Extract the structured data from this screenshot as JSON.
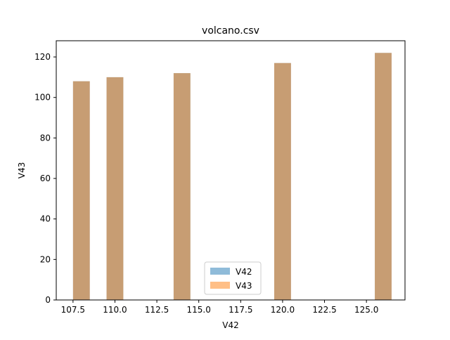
{
  "chart_data": {
    "type": "bar",
    "title": "volcano.csv",
    "xlabel": "V42",
    "ylabel": "V43",
    "xlim": [
      106.5,
      127.3
    ],
    "ylim": [
      0,
      128
    ],
    "x_ticks": [
      107.5,
      110.0,
      112.5,
      115.0,
      117.5,
      120.0,
      122.5,
      125.0
    ],
    "x_tick_labels": [
      "107.5",
      "110.0",
      "112.5",
      "115.0",
      "117.5",
      "120.0",
      "122.5",
      "125.0"
    ],
    "y_ticks": [
      0,
      20,
      40,
      60,
      80,
      100,
      120
    ],
    "y_tick_labels": [
      "0",
      "20",
      "40",
      "60",
      "80",
      "100",
      "120"
    ],
    "bar_width": 1.0,
    "grid": false,
    "legend": "lower center",
    "series": [
      {
        "name": "V42",
        "color": "#1f77b4",
        "alpha": 0.5,
        "x": [
          108,
          110,
          114,
          120,
          126
        ],
        "values": [
          108,
          110,
          112,
          117,
          122
        ]
      },
      {
        "name": "V43",
        "color": "#ff7f0e",
        "alpha": 0.5,
        "x": [
          108,
          110,
          114,
          120,
          126
        ],
        "values": [
          108,
          110,
          112,
          117,
          122
        ]
      }
    ]
  }
}
